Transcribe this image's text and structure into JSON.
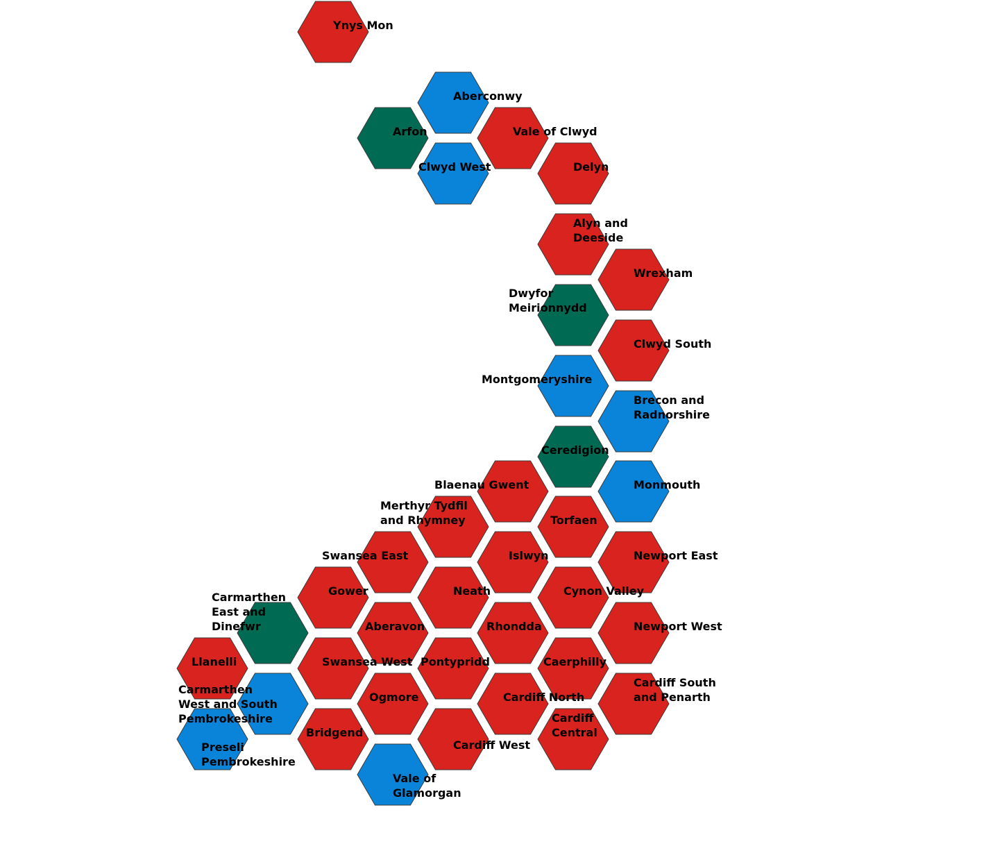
{
  "party_colors": {
    "red": "#d9231e",
    "blue": "#0a84d8",
    "green": "#006a52"
  },
  "constituencies": [
    {
      "id": "ynys-mon",
      "lines": [
        "Ynys Mon"
      ],
      "party": "red"
    },
    {
      "id": "aberconwy",
      "lines": [
        "Aberconwy"
      ],
      "party": "blue"
    },
    {
      "id": "arfon",
      "lines": [
        "Arfon"
      ],
      "party": "green"
    },
    {
      "id": "vale-of-clwyd",
      "lines": [
        "Vale of Clwyd"
      ],
      "party": "red"
    },
    {
      "id": "clwyd-west",
      "lines": [
        "Clwyd West"
      ],
      "party": "blue"
    },
    {
      "id": "delyn",
      "lines": [
        "Delyn"
      ],
      "party": "red"
    },
    {
      "id": "alyn-and-deeside",
      "lines": [
        "Alyn and",
        "Deeside"
      ],
      "party": "red"
    },
    {
      "id": "wrexham",
      "lines": [
        "Wrexham"
      ],
      "party": "red"
    },
    {
      "id": "dwyfor-meirionnydd",
      "lines": [
        "Dwyfor",
        "Meirionnydd"
      ],
      "party": "green"
    },
    {
      "id": "clwyd-south",
      "lines": [
        "Clwyd South"
      ],
      "party": "red"
    },
    {
      "id": "montgomeryshire",
      "lines": [
        "Montgomeryshire"
      ],
      "party": "blue"
    },
    {
      "id": "brecon-and-radnorshire",
      "lines": [
        "Brecon and",
        "Radnorshire"
      ],
      "party": "blue"
    },
    {
      "id": "ceredigion",
      "lines": [
        "Ceredigion"
      ],
      "party": "green"
    },
    {
      "id": "monmouth",
      "lines": [
        "Monmouth"
      ],
      "party": "blue"
    },
    {
      "id": "blaenau-gwent",
      "lines": [
        "Blaenau Gwent"
      ],
      "party": "red"
    },
    {
      "id": "merthyr-tydfil-and-rhymney",
      "lines": [
        "Merthyr Tydfil",
        "and Rhymney"
      ],
      "party": "red"
    },
    {
      "id": "torfaen",
      "lines": [
        "Torfaen"
      ],
      "party": "red"
    },
    {
      "id": "swansea-east",
      "lines": [
        "Swansea East"
      ],
      "party": "red"
    },
    {
      "id": "islwyn",
      "lines": [
        "Islwyn"
      ],
      "party": "red"
    },
    {
      "id": "newport-east",
      "lines": [
        "Newport East"
      ],
      "party": "red"
    },
    {
      "id": "gower",
      "lines": [
        "Gower"
      ],
      "party": "red"
    },
    {
      "id": "neath",
      "lines": [
        "Neath"
      ],
      "party": "red"
    },
    {
      "id": "cynon-valley",
      "lines": [
        "Cynon Valley"
      ],
      "party": "red"
    },
    {
      "id": "carmarthen-east-and-dinefwr",
      "lines": [
        "Carmarthen",
        "East and",
        "Dinefwr"
      ],
      "party": "green"
    },
    {
      "id": "aberavon",
      "lines": [
        "Aberavon"
      ],
      "party": "red"
    },
    {
      "id": "rhondda",
      "lines": [
        "Rhondda"
      ],
      "party": "red"
    },
    {
      "id": "newport-west",
      "lines": [
        "Newport West"
      ],
      "party": "red"
    },
    {
      "id": "llanelli",
      "lines": [
        "Llanelli"
      ],
      "party": "red"
    },
    {
      "id": "swansea-west",
      "lines": [
        "Swansea West"
      ],
      "party": "red"
    },
    {
      "id": "pontypridd",
      "lines": [
        "Pontypridd"
      ],
      "party": "red"
    },
    {
      "id": "caerphilly",
      "lines": [
        "Caerphilly"
      ],
      "party": "red"
    },
    {
      "id": "carmarthen-west-and-south-pembrokeshire",
      "lines": [
        "Carmarthen",
        "West and South",
        "Pembrokeshire"
      ],
      "party": "blue"
    },
    {
      "id": "ogmore",
      "lines": [
        "Ogmore"
      ],
      "party": "red"
    },
    {
      "id": "cardiff-north",
      "lines": [
        "Cardiff North"
      ],
      "party": "red"
    },
    {
      "id": "cardiff-south-and-penarth",
      "lines": [
        "Cardiff South",
        "and Penarth"
      ],
      "party": "red"
    },
    {
      "id": "preseli-pembrokeshire",
      "lines": [
        "Preseli",
        "Pembrokeshire"
      ],
      "party": "blue"
    },
    {
      "id": "bridgend",
      "lines": [
        "Bridgend"
      ],
      "party": "red"
    },
    {
      "id": "cardiff-west",
      "lines": [
        "Cardiff West"
      ],
      "party": "red"
    },
    {
      "id": "cardiff-central",
      "lines": [
        "Cardiff",
        "Central"
      ],
      "party": "red"
    },
    {
      "id": "vale-of-glamorgan",
      "lines": [
        "Vale of",
        "Glamorgan"
      ],
      "party": "blue"
    }
  ]
}
